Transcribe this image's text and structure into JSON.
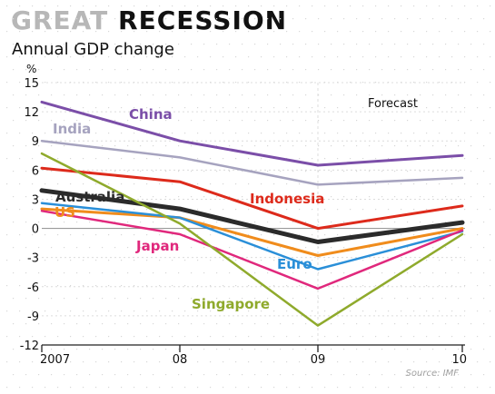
{
  "header": {
    "title_part1": "GREAT",
    "title_part2": "RECESSION",
    "subtitle": "Annual GDP change"
  },
  "chart_data": {
    "type": "line",
    "title": "GREAT RECESSION",
    "subtitle": "Annual GDP change",
    "ylabel": "%",
    "xlabel": "",
    "x": [
      "2007",
      "08",
      "09",
      "10"
    ],
    "ylim": [
      -12,
      15
    ],
    "yticks": [
      15,
      12,
      9,
      6,
      3,
      0,
      -3,
      -6,
      -9,
      -12
    ],
    "grid": true,
    "forecast_label": "Forecast",
    "source": "Source: IMF",
    "series": [
      {
        "name": "China",
        "values": [
          13.0,
          9.0,
          6.5,
          7.5
        ],
        "color": "#7b4ea8",
        "width": 3
      },
      {
        "name": "India",
        "values": [
          9.0,
          7.3,
          4.5,
          5.2
        ],
        "color": "#a6a3bf",
        "width": 2.5
      },
      {
        "name": "Indonesia",
        "values": [
          6.2,
          4.8,
          0.0,
          2.3
        ],
        "color": "#dd2a1b",
        "width": 3
      },
      {
        "name": "Australia",
        "values": [
          3.9,
          2.0,
          -1.4,
          0.6
        ],
        "color": "#2b2b2b",
        "width": 5
      },
      {
        "name": "US",
        "values": [
          2.0,
          1.1,
          -2.8,
          0.0
        ],
        "color": "#f08c1c",
        "width": 3
      },
      {
        "name": "Euro",
        "values": [
          2.6,
          1.1,
          -4.2,
          -0.3
        ],
        "color": "#2a8fd8",
        "width": 2.5
      },
      {
        "name": "Japan",
        "values": [
          1.8,
          -0.6,
          -6.2,
          -0.2
        ],
        "color": "#e0287c",
        "width": 2.5
      },
      {
        "name": "Singapore",
        "values": [
          7.7,
          0.5,
          -10.0,
          -0.6
        ],
        "color": "#8faa2c",
        "width": 2.5
      }
    ]
  }
}
